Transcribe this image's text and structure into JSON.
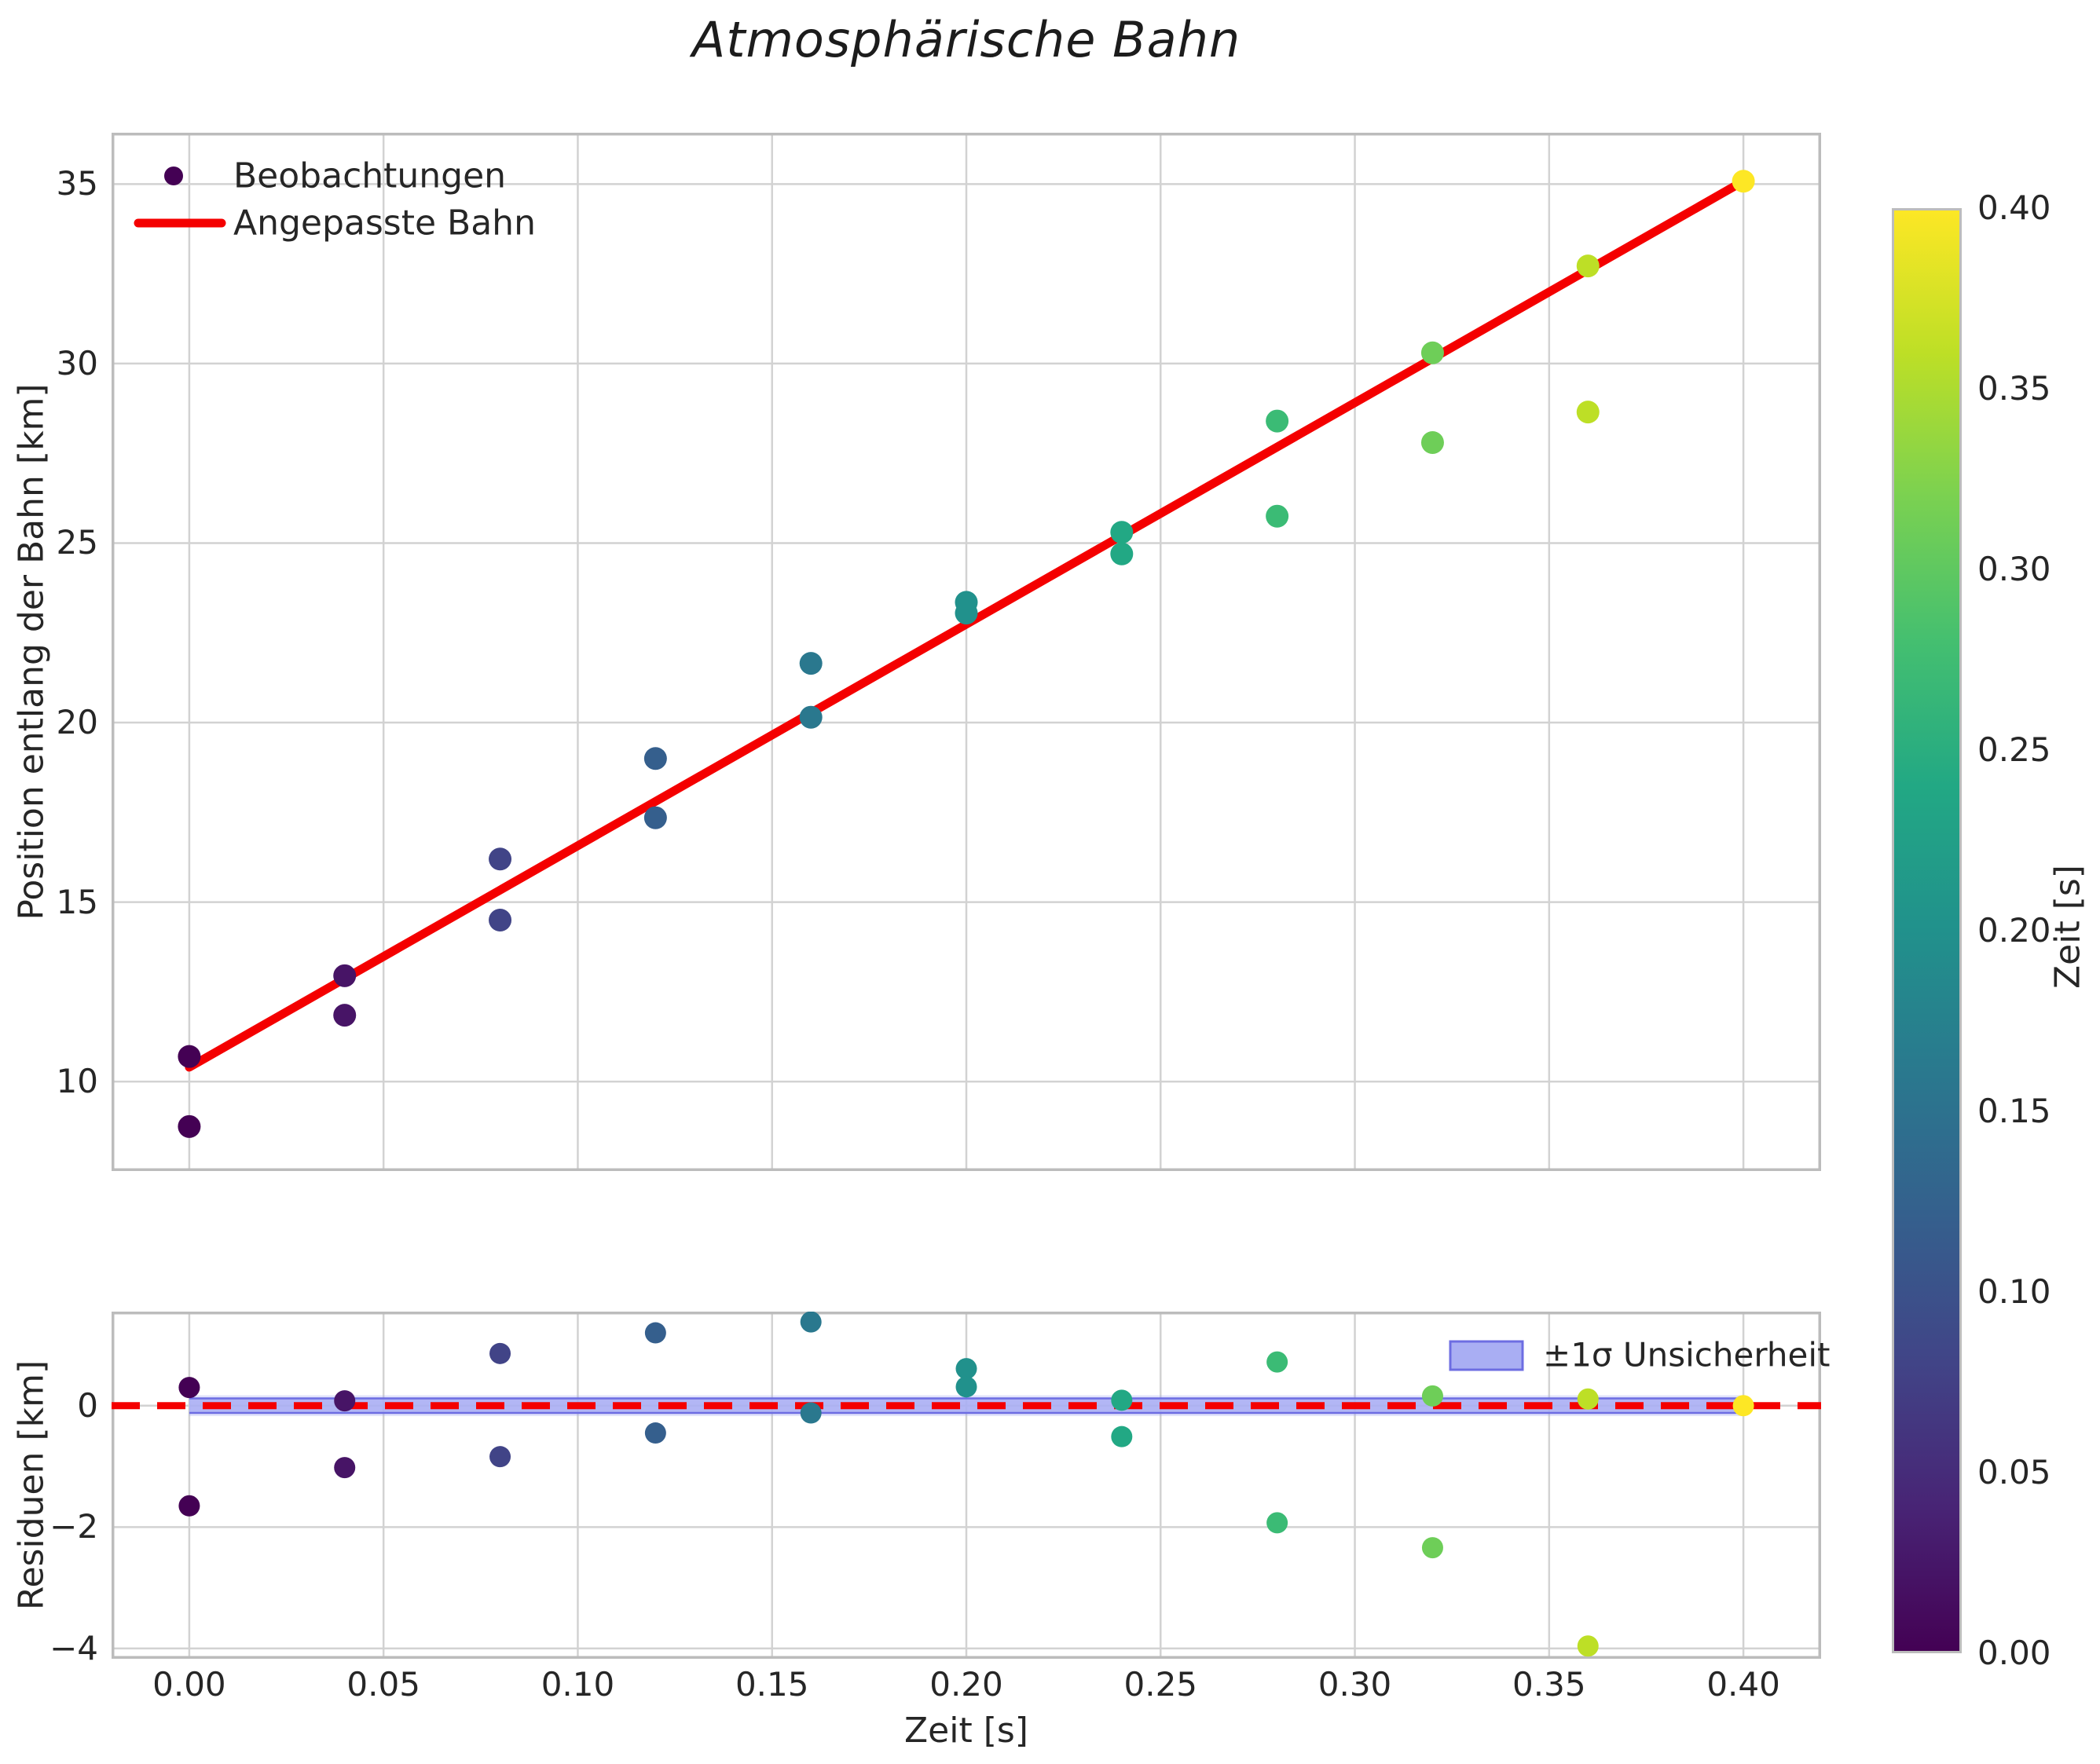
{
  "title": "Atmosphärische Bahn",
  "chart_data": {
    "type": "scatter",
    "title": "Atmosphärische Bahn",
    "grid": true,
    "colors": {
      "fit_line": "#f40000",
      "grid_line": "#d2d2d2",
      "spine": "#bcbcbc",
      "text": "#262626",
      "band_fill": "#a9aef3",
      "band_edge": "#6d6de2",
      "background": "#ffffff"
    },
    "time_values": [
      0.0,
      0.04,
      0.08,
      0.12,
      0.16,
      0.2,
      0.24,
      0.28,
      0.32,
      0.36,
      0.4
    ],
    "point_colors_by_time": [
      "#440154",
      "#471466",
      "#414487",
      "#355f8d",
      "#2a788e",
      "#21918c",
      "#22a884",
      "#3bbb75",
      "#6ece58",
      "#bddf26",
      "#fde725"
    ],
    "panels": [
      {
        "name": "trajectory",
        "ylabel": "Position entlang der Bahn [km]",
        "xlim": [
          -0.02,
          0.42
        ],
        "ylim": [
          7.51,
          36.43
        ],
        "yticks": {
          "values": [
            10,
            15,
            20,
            25,
            30,
            35
          ],
          "labels": [
            "10",
            "15",
            "20",
            "25",
            "30",
            "35"
          ]
        },
        "xgrid_values": [
          0.0,
          0.05,
          0.1,
          0.15,
          0.2,
          0.25,
          0.3,
          0.35,
          0.4
        ],
        "legend_position": "upper left",
        "series": [
          {
            "name": "Beobachtungen",
            "type": "scatter",
            "x": [
              0.0,
              0.0,
              0.04,
              0.04,
              0.08,
              0.08,
              0.12,
              0.12,
              0.16,
              0.16,
              0.2,
              0.2,
              0.24,
              0.24,
              0.28,
              0.28,
              0.32,
              0.32,
              0.36,
              0.36,
              0.4
            ],
            "y": [
              10.7,
              8.75,
              12.95,
              11.85,
              16.2,
              14.5,
              19.0,
              17.35,
              21.65,
              20.15,
              23.35,
              23.05,
              25.3,
              24.7,
              28.4,
              25.75,
              30.3,
              27.8,
              32.72,
              28.65,
              35.08
            ],
            "colormap": "viridis",
            "color_by": "Zeit [s]"
          },
          {
            "name": "Angepasste Bahn",
            "type": "line",
            "x": [
              0.0,
              0.4
            ],
            "y": [
              10.4,
              35.08
            ],
            "slope_km_per_s": 61.7,
            "intercept_km": 10.4
          }
        ]
      },
      {
        "name": "residuals",
        "ylabel": "Residuen [km]",
        "xlabel": "Zeit [s]",
        "xlim": [
          -0.02,
          0.42
        ],
        "ylim": [
          -4.17,
          1.55
        ],
        "yticks": {
          "values": [
            0,
            -2,
            -4
          ],
          "labels": [
            "0",
            "−2",
            "−4"
          ]
        },
        "xticks": {
          "values": [
            0.0,
            0.05,
            0.1,
            0.15,
            0.2,
            0.25,
            0.3,
            0.35,
            0.4
          ],
          "labels": [
            "0.00",
            "0.05",
            "0.10",
            "0.15",
            "0.20",
            "0.25",
            "0.30",
            "0.35",
            "0.40"
          ]
        },
        "zero_line": {
          "y": 0,
          "style": "dashed",
          "color": "#f40000"
        },
        "band": {
          "label": "±1σ Unsicherheit",
          "x_range": [
            0.0,
            0.4
          ],
          "half_width": 0.12
        },
        "points": {
          "x": [
            0.0,
            0.0,
            0.04,
            0.04,
            0.08,
            0.08,
            0.12,
            0.12,
            0.16,
            0.16,
            0.2,
            0.2,
            0.24,
            0.24,
            0.28,
            0.28,
            0.32,
            0.32,
            0.36,
            0.36,
            0.4
          ],
          "residual": [
            0.3,
            -1.65,
            0.08,
            -1.02,
            0.86,
            -0.84,
            1.2,
            -0.45,
            1.38,
            -0.12,
            0.61,
            0.31,
            0.09,
            -0.51,
            0.72,
            -1.93,
            0.16,
            -2.34,
            0.11,
            -3.96,
            0.0
          ]
        }
      }
    ],
    "colorbar": {
      "label": "Zeit [s]",
      "vmin": 0.0,
      "vmax": 0.4,
      "ticks": {
        "values": [
          0.4,
          0.35,
          0.3,
          0.25,
          0.2,
          0.15,
          0.1,
          0.05,
          0.0
        ],
        "labels": [
          "0.40",
          "0.35",
          "0.30",
          "0.25",
          "0.20",
          "0.15",
          "0.10",
          "0.05",
          "0.00"
        ]
      },
      "colormap": "viridis",
      "stops": [
        "#fde725",
        "#bddf26",
        "#7ad151",
        "#44bf70",
        "#22a884",
        "#21918c",
        "#2a788e",
        "#355f8d",
        "#414487",
        "#482475",
        "#440154"
      ]
    }
  }
}
